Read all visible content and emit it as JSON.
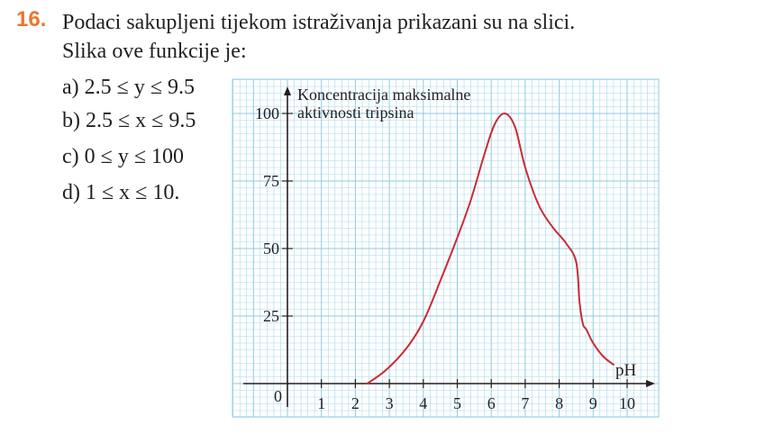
{
  "question": {
    "number": "16.",
    "line1": "Podaci sakupljeni tijekom istraživanja prikazani su na slici.",
    "line2": "Slika ove funkcije je:"
  },
  "options": [
    {
      "label": "a)",
      "text": "2.5 ≤ y ≤ 9.5"
    },
    {
      "label": "b)",
      "text": "2.5 ≤ x ≤ 9.5"
    },
    {
      "label": "c)",
      "text": "0 ≤ y ≤ 100"
    },
    {
      "label": "d)",
      "text": "1 ≤ x ≤ 10."
    }
  ],
  "chart_data": {
    "type": "line",
    "title": "",
    "ylabel_line1": "Koncentracija maksimalne",
    "ylabel_line2": "aktivnosti tripsina",
    "xlabel": "pH",
    "origin_label": "0",
    "xlim": [
      0,
      10
    ],
    "ylim": [
      0,
      100
    ],
    "x_ticks": [
      1,
      2,
      3,
      4,
      5,
      6,
      7,
      8,
      9,
      10
    ],
    "y_ticks": [
      25,
      50,
      75,
      100
    ],
    "grid": true,
    "colors": {
      "curve": "#cc2a36",
      "grid": "#a8d8ea",
      "grid_major": "#8ccbe2",
      "axis": "#231f20"
    },
    "series": [
      {
        "x": [
          2.35,
          2.9,
          3.5,
          4.0,
          4.5,
          5.0,
          5.4,
          5.8,
          6.1,
          6.4,
          6.7,
          7.0,
          7.4,
          7.8,
          8.2,
          8.5,
          8.6,
          8.7,
          8.8,
          9.0,
          9.3,
          9.6
        ],
        "y": [
          0,
          5,
          13,
          23,
          38,
          54,
          68,
          85,
          96,
          100,
          95,
          80,
          66,
          58,
          52,
          45,
          30,
          22,
          20,
          15,
          10,
          7
        ]
      }
    ]
  }
}
